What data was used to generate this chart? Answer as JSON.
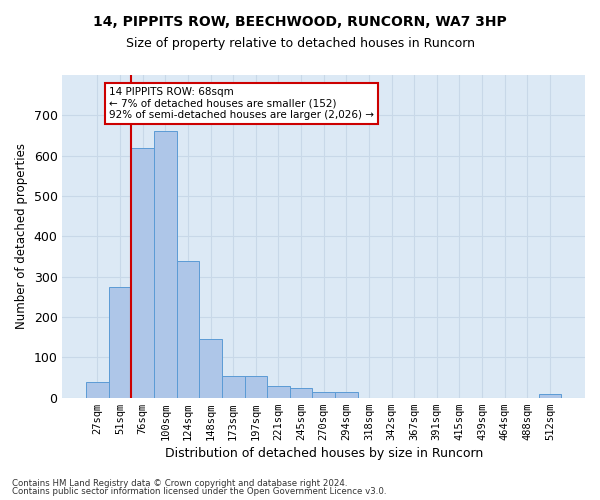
{
  "title1": "14, PIPPITS ROW, BEECHWOOD, RUNCORN, WA7 3HP",
  "title2": "Size of property relative to detached houses in Runcorn",
  "xlabel": "Distribution of detached houses by size in Runcorn",
  "ylabel": "Number of detached properties",
  "categories": [
    "27sqm",
    "51sqm",
    "76sqm",
    "100sqm",
    "124sqm",
    "148sqm",
    "173sqm",
    "197sqm",
    "221sqm",
    "245sqm",
    "270sqm",
    "294sqm",
    "318sqm",
    "342sqm",
    "367sqm",
    "391sqm",
    "415sqm",
    "439sqm",
    "464sqm",
    "488sqm",
    "512sqm"
  ],
  "values": [
    40,
    275,
    620,
    660,
    340,
    145,
    55,
    55,
    30,
    25,
    15,
    15,
    0,
    0,
    0,
    0,
    0,
    0,
    0,
    0,
    10
  ],
  "bar_color": "#aec6e8",
  "bar_edge_color": "#5b9bd5",
  "vline_x_pos": 1.5,
  "annotation_text": "14 PIPPITS ROW: 68sqm\n← 7% of detached houses are smaller (152)\n92% of semi-detached houses are larger (2,026) →",
  "annotation_box_color": "#ffffff",
  "annotation_box_edge": "#cc0000",
  "vline_color": "#cc0000",
  "grid_color": "#c8d8e8",
  "background_color": "#dce9f5",
  "footer1": "Contains HM Land Registry data © Crown copyright and database right 2024.",
  "footer2": "Contains public sector information licensed under the Open Government Licence v3.0.",
  "ylim": [
    0,
    800
  ],
  "yticks": [
    0,
    100,
    200,
    300,
    400,
    500,
    600,
    700
  ]
}
